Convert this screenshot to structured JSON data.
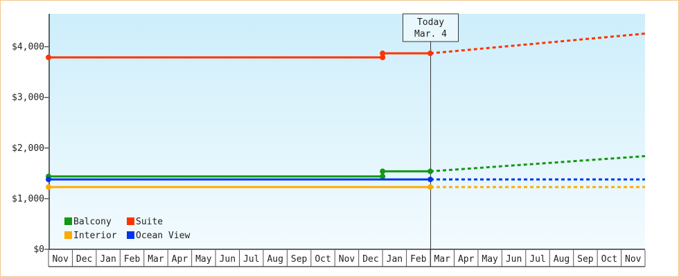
{
  "chart_data": {
    "type": "line",
    "title": "",
    "xlabel": "",
    "ylabel": "",
    "categories": [
      "Nov",
      "Dec",
      "Jan",
      "Feb",
      "Mar",
      "Apr",
      "May",
      "Jun",
      "Jul",
      "Aug",
      "Sep",
      "Oct",
      "Nov",
      "Dec",
      "Jan",
      "Feb",
      "Mar",
      "Apr",
      "May",
      "Jun",
      "Jul",
      "Aug",
      "Sep",
      "Oct",
      "Nov"
    ],
    "y_ticks": [
      {
        "value": 0,
        "label": "$0"
      },
      {
        "value": 1000,
        "label": "$1,000"
      },
      {
        "value": 2000,
        "label": "$2,000"
      },
      {
        "value": 3000,
        "label": "$3,000"
      },
      {
        "value": 4000,
        "label": "$4,000"
      }
    ],
    "ylim": [
      0,
      4650
    ],
    "today": {
      "index": 16,
      "line1": "Today",
      "line2": "Mar. 4"
    },
    "legend_position": "bottom-left",
    "series": [
      {
        "name": "Balcony",
        "color": "#119911",
        "actual": [
          [
            0,
            1440
          ],
          [
            14,
            1440
          ],
          [
            14,
            1540
          ],
          [
            16,
            1540
          ]
        ],
        "forecast": [
          [
            16,
            1540
          ],
          [
            25,
            1840
          ]
        ]
      },
      {
        "name": "Suite",
        "color": "#ff3300",
        "actual": [
          [
            0,
            3790
          ],
          [
            14,
            3790
          ],
          [
            14,
            3870
          ],
          [
            16,
            3870
          ]
        ],
        "forecast": [
          [
            16,
            3870
          ],
          [
            25,
            4260
          ]
        ]
      },
      {
        "name": "Interior",
        "color": "#ffaa00",
        "actual": [
          [
            0,
            1230
          ],
          [
            16,
            1230
          ]
        ],
        "forecast": [
          [
            16,
            1230
          ],
          [
            25,
            1230
          ]
        ]
      },
      {
        "name": "Ocean View",
        "color": "#0033ee",
        "actual": [
          [
            0,
            1380
          ],
          [
            16,
            1380
          ]
        ],
        "forecast": [
          [
            16,
            1380
          ],
          [
            25,
            1380
          ]
        ]
      }
    ],
    "legend_order": [
      "Balcony",
      "Suite",
      "Interior",
      "Ocean View"
    ]
  }
}
